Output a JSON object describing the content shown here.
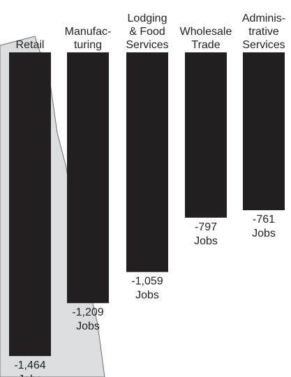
{
  "chart_data": {
    "type": "bar",
    "categories": [
      [
        "Retail"
      ],
      [
        "Manufac-",
        "turing"
      ],
      [
        "Lodging",
        "& Food",
        "Services"
      ],
      [
        "Wholesale",
        "Trade"
      ],
      [
        "Adminis-",
        "trative",
        "Services"
      ]
    ],
    "values": [
      -1464,
      -1209,
      -1059,
      -797,
      -761
    ],
    "data_labels": [
      [
        "-1,464",
        "Jobs"
      ],
      [
        "-1,209",
        "Jobs"
      ],
      [
        "-1,059",
        "Jobs"
      ],
      [
        "-797",
        "Jobs"
      ],
      [
        "-761",
        "Jobs"
      ]
    ],
    "title": "",
    "xlabel": "",
    "ylabel": "",
    "ylim": [
      -1500,
      0
    ],
    "grid": false,
    "legend": "none"
  },
  "colors": {
    "bar": "#231f20",
    "background_shape": "#dcdddf",
    "background_stroke": "#6d6e71",
    "text": "#222222"
  }
}
